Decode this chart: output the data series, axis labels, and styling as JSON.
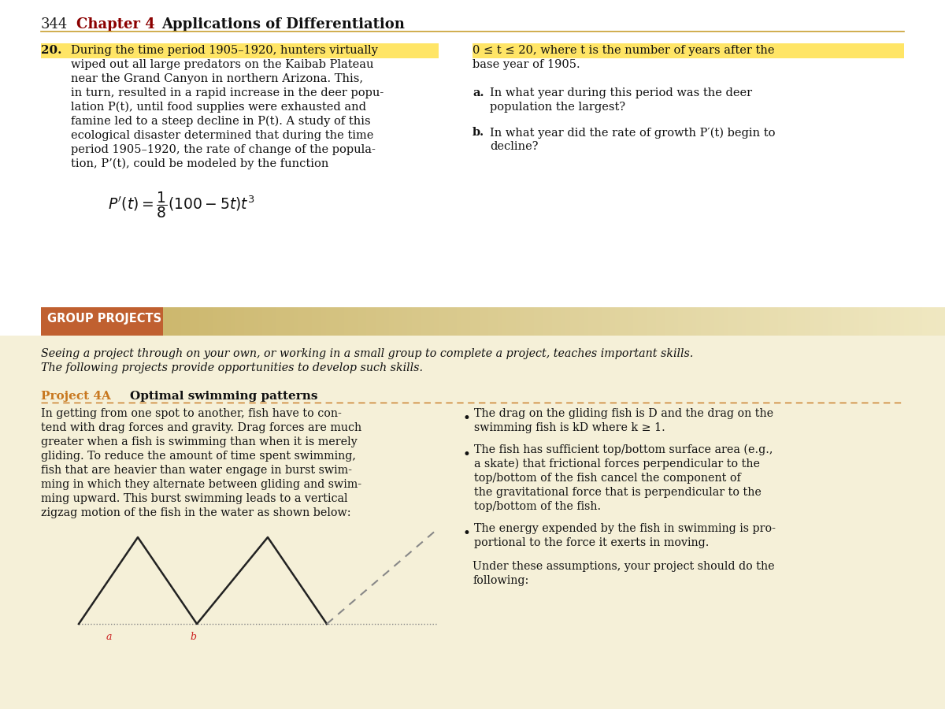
{
  "page_number": "344",
  "chapter_label": "Chapter 4",
  "chapter_title": "Applications of Differentiation",
  "white_bg": "#ffffff",
  "cream_bg": "#f5f0d8",
  "header_color": "#8b0000",
  "body_color": "#1a1a1a",
  "highlight_yellow": "#ffe566",
  "orange_color": "#c87820",
  "group_projects_dark": "#c8a030",
  "group_projects_label_bg": "#c06030",
  "section_top_left": [
    "During the time period 1905–1920, hunters virtually",
    "wiped out all large predators on the Kaibab Plateau",
    "near the Grand Canyon in northern Arizona. This,",
    "in turn, resulted in a rapid increase in the deer popu-",
    "lation P(t), until food supplies were exhausted and",
    "famine led to a steep decline in P(t). A study of this",
    "ecological disaster determined that during the time",
    "period 1905–1920, the rate of change of the popula-",
    "tion, P’(t), could be modeled by the function"
  ],
  "right_line1": "0 ≤ t ≤ 20, where t is the number of years after the",
  "right_line2": "base year of 1905.",
  "qa1": "In what year during this period was the deer",
  "qa2": "population the largest?",
  "qb1": "In what year did the rate of growth P′(t) begin to",
  "qb2": "decline?",
  "gp_intro1": "Seeing a project through on your own, or working in a small group to complete a project, teaches important skills.",
  "gp_intro2": "The following projects provide opportunities to develop such skills.",
  "left_para": [
    "In getting from one spot to another, fish have to con-",
    "tend with drag forces and gravity. Drag forces are much",
    "greater when a fish is swimming than when it is merely",
    "gliding. To reduce the amount of time spent swimming,",
    "fish that are heavier than water engage in burst swim-",
    "ming in which they alternate between gliding and swim-",
    "ming upward. This burst swimming leads to a vertical",
    "zigzag motion of the fish in the water as shown below:"
  ],
  "bullet1a": "The drag on the gliding fish is D and the drag on the",
  "bullet1b": "swimming fish is kD where k ≥ 1.",
  "bullet2a": "The fish has sufficient top/bottom surface area (e.g.,",
  "bullet2b": "a skate) that frictional forces perpendicular to the",
  "bullet2c": "top/bottom of the fish cancel the component of",
  "bullet2d": "the gravitational force that is perpendicular to the",
  "bullet2e": "top/bottom of the fish.",
  "bullet3a": "The energy expended by the fish in swimming is pro-",
  "bullet3b": "portional to the force it exerts in moving.",
  "close1": "Under these assumptions, your project should do the",
  "close2": "following:"
}
